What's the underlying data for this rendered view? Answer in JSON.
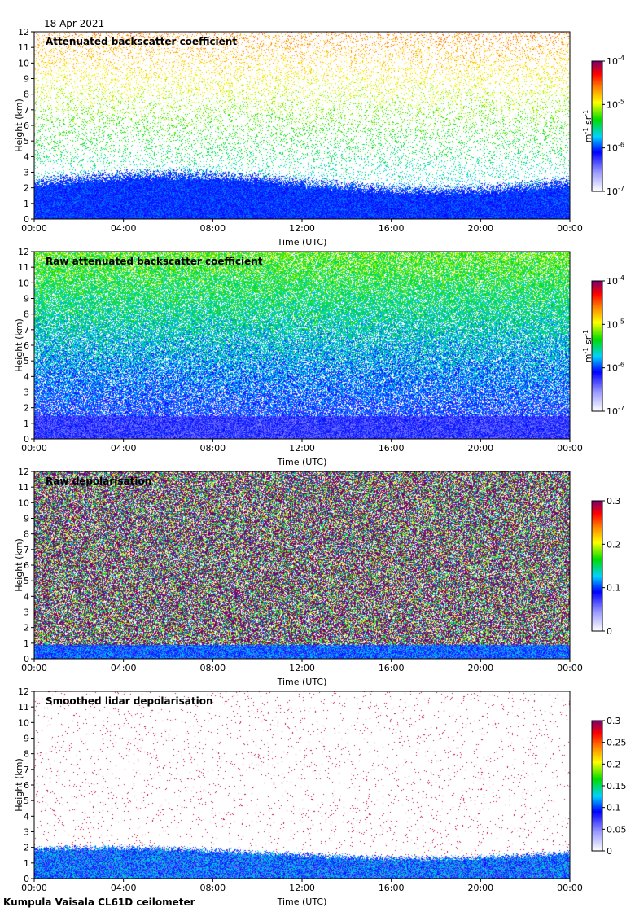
{
  "header": {
    "date": "18 Apr 2021"
  },
  "footer": {
    "text": "Kumpula Vaisala CL61D ceilometer"
  },
  "chart_data": [
    {
      "type": "heatmap",
      "title": "Attenuated backscatter coefficient",
      "xlabel": "Time (UTC)",
      "ylabel": "Height (km)",
      "x_ticks": [
        "00:00",
        "04:00",
        "08:00",
        "12:00",
        "16:00",
        "20:00",
        "00:00"
      ],
      "y_ticks": [
        "0",
        "1",
        "2",
        "3",
        "4",
        "5",
        "6",
        "7",
        "8",
        "9",
        "10",
        "11",
        "12"
      ],
      "ylim": [
        0,
        12
      ],
      "colorbar": {
        "scale": "log",
        "range": [
          1e-07,
          0.0001
        ],
        "ticks": [
          {
            "base": "10",
            "exp": "-4"
          },
          {
            "base": "10",
            "exp": "-5"
          },
          {
            "base": "10",
            "exp": "-6"
          },
          {
            "base": "10",
            "exp": "-7"
          }
        ],
        "unit_label": {
          "m": "m",
          "m_exp": "-1",
          "sr": "sr",
          "sr_exp": "-1"
        }
      },
      "features": {
        "dense_layer_top_km": 2.5,
        "sparse_signal_above": true
      }
    },
    {
      "type": "heatmap",
      "title": "Raw attenuated backscatter coefficient",
      "xlabel": "Time (UTC)",
      "ylabel": "Height (km)",
      "x_ticks": [
        "00:00",
        "04:00",
        "08:00",
        "12:00",
        "16:00",
        "20:00",
        "00:00"
      ],
      "y_ticks": [
        "0",
        "1",
        "2",
        "3",
        "4",
        "5",
        "6",
        "7",
        "8",
        "9",
        "10",
        "11",
        "12"
      ],
      "ylim": [
        0,
        12
      ],
      "colorbar": {
        "scale": "log",
        "range": [
          1e-07,
          0.0001
        ],
        "ticks": [
          {
            "base": "10",
            "exp": "-4"
          },
          {
            "base": "10",
            "exp": "-5"
          },
          {
            "base": "10",
            "exp": "-6"
          },
          {
            "base": "10",
            "exp": "-7"
          }
        ],
        "unit_label": {
          "m": "m",
          "m_exp": "-1",
          "sr": "sr",
          "sr_exp": "-1"
        }
      },
      "features": {
        "noise_increases_with_height": true
      }
    },
    {
      "type": "heatmap",
      "title": "Raw depolarisation",
      "xlabel": "Time (UTC)",
      "ylabel": "Height (km)",
      "x_ticks": [
        "00:00",
        "04:00",
        "08:00",
        "12:00",
        "16:00",
        "20:00",
        "00:00"
      ],
      "y_ticks": [
        "0",
        "1",
        "2",
        "3",
        "4",
        "5",
        "6",
        "7",
        "8",
        "9",
        "10",
        "11",
        "12"
      ],
      "ylim": [
        0,
        12
      ],
      "colorbar": {
        "scale": "linear",
        "range": [
          0,
          0.3
        ],
        "ticks": [
          "0.3",
          "0.2",
          "0.1",
          "0"
        ]
      },
      "features": {
        "noise_dominated_above_km": 1.5
      }
    },
    {
      "type": "heatmap",
      "title": "Smoothed lidar depolarisation",
      "xlabel": "Time (UTC)",
      "ylabel": "Height (km)",
      "x_ticks": [
        "00:00",
        "04:00",
        "08:00",
        "12:00",
        "16:00",
        "20:00",
        "00:00"
      ],
      "y_ticks": [
        "0",
        "1",
        "2",
        "3",
        "4",
        "5",
        "6",
        "7",
        "8",
        "9",
        "10",
        "11",
        "12"
      ],
      "ylim": [
        0,
        12
      ],
      "colorbar": {
        "scale": "linear",
        "range": [
          0,
          0.3
        ],
        "ticks": [
          "0.3",
          "0.25",
          "0.2",
          "0.15",
          "0.1",
          "0.05",
          "0"
        ]
      },
      "features": {
        "boundary_layer_top_km": 2.0,
        "sparse_signal_above": true
      }
    }
  ]
}
